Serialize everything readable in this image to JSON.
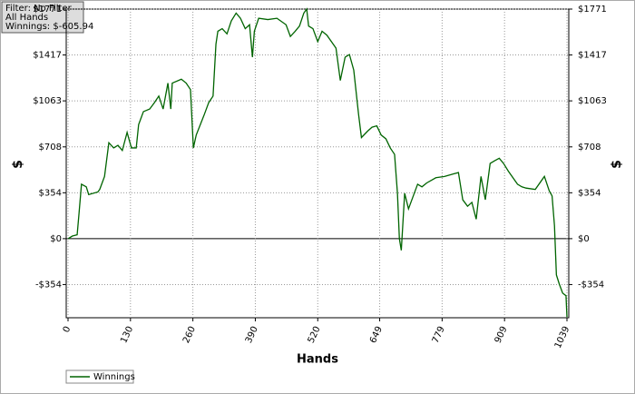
{
  "info": {
    "filter": "Filter: No Filter",
    "hands": "All Hands",
    "winnings": "Winnings: $-605.94"
  },
  "chart_data": {
    "type": "line",
    "x_label": "Hands",
    "y_label": "$",
    "grid": true,
    "xlim": [
      0,
      1039
    ],
    "ylim": [
      -610,
      1771
    ],
    "xticks": [
      0,
      130,
      260,
      390,
      520,
      649,
      779,
      909,
      1039
    ],
    "yticks": [
      {
        "value": -354,
        "label": "-$354"
      },
      {
        "value": 0,
        "label": "$0"
      },
      {
        "value": 354,
        "label": "$354"
      },
      {
        "value": 708,
        "label": "$708"
      },
      {
        "value": 1063,
        "label": "$1063"
      },
      {
        "value": 1417,
        "label": "$1417"
      },
      {
        "value": 1771,
        "label": "$1771"
      }
    ],
    "x": [
      0,
      9,
      19,
      23,
      28,
      38,
      43,
      62,
      66,
      76,
      85,
      95,
      104,
      113,
      123,
      132,
      142,
      147,
      157,
      170,
      180,
      189,
      198,
      208,
      214,
      217,
      236,
      246,
      255,
      261,
      267,
      284,
      293,
      302,
      308,
      312,
      321,
      331,
      340,
      350,
      359,
      369,
      378,
      384,
      388,
      397,
      416,
      435,
      454,
      463,
      473,
      482,
      491,
      497,
      501,
      510,
      520,
      529,
      539,
      558,
      567,
      577,
      586,
      595,
      605,
      611,
      624,
      633,
      643,
      652,
      662,
      671,
      680,
      686,
      690,
      694,
      701,
      709,
      718,
      728,
      737,
      747,
      766,
      784,
      803,
      813,
      822,
      832,
      841,
      850,
      860,
      869,
      879,
      888,
      898,
      907,
      917,
      936,
      945,
      954,
      973,
      992,
      1002,
      1008,
      1013,
      1017,
      1023,
      1030,
      1037,
      1039
    ],
    "series": [
      {
        "name": "Winnings",
        "color": "#006400",
        "values": [
          0,
          20,
          30,
          200,
          420,
          400,
          340,
          360,
          380,
          480,
          740,
          700,
          720,
          680,
          820,
          700,
          700,
          880,
          980,
          1000,
          1050,
          1100,
          1000,
          1200,
          1000,
          1200,
          1230,
          1200,
          1150,
          700,
          800,
          960,
          1050,
          1100,
          1500,
          1600,
          1620,
          1580,
          1680,
          1740,
          1700,
          1620,
          1650,
          1400,
          1600,
          1700,
          1690,
          1700,
          1650,
          1560,
          1600,
          1640,
          1740,
          1771,
          1640,
          1620,
          1520,
          1600,
          1570,
          1470,
          1220,
          1400,
          1420,
          1300,
          960,
          780,
          830,
          860,
          870,
          800,
          770,
          700,
          650,
          350,
          0,
          -90,
          350,
          230,
          320,
          420,
          400,
          430,
          470,
          480,
          500,
          510,
          300,
          250,
          280,
          150,
          480,
          300,
          580,
          600,
          620,
          580,
          520,
          420,
          400,
          390,
          380,
          480,
          370,
          330,
          100,
          -280,
          -350,
          -420,
          -440,
          -605.94
        ]
      }
    ]
  }
}
